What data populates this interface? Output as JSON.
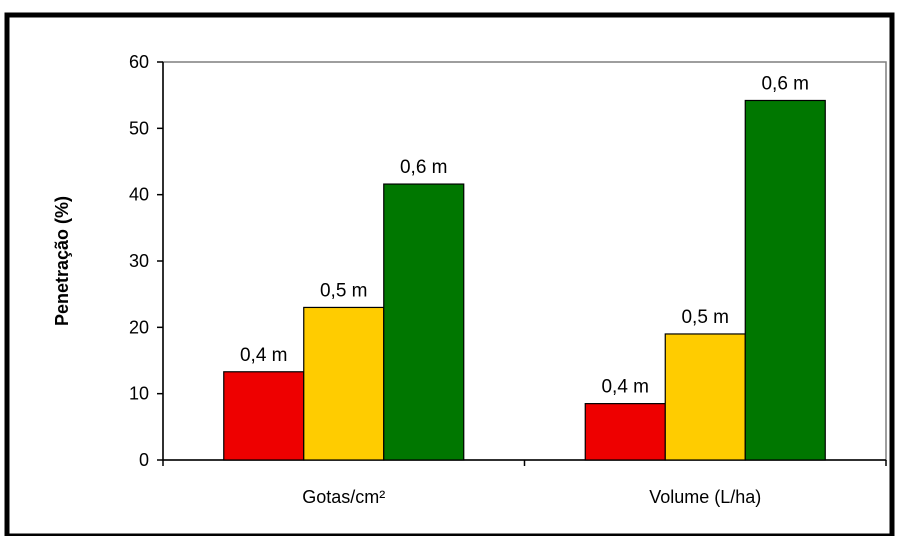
{
  "chart_data": {
    "type": "bar",
    "title": "",
    "xlabel": "",
    "ylabel": "Penetração (%)",
    "ylim": [
      0,
      60
    ],
    "yticks": [
      0,
      10,
      20,
      30,
      40,
      50,
      60
    ],
    "grid": false,
    "legend": "none",
    "categories": [
      "Gotas/cm²",
      "Volume (L/ha)"
    ],
    "series": [
      {
        "label": "0,4 m",
        "color": "#ee0000",
        "values": [
          13.3,
          8.5
        ]
      },
      {
        "label": "0,5 m",
        "color": "#ffcc00",
        "values": [
          23.0,
          19.0
        ]
      },
      {
        "label": "0,6 m",
        "color": "#007700",
        "values": [
          41.6,
          54.2
        ]
      }
    ]
  }
}
